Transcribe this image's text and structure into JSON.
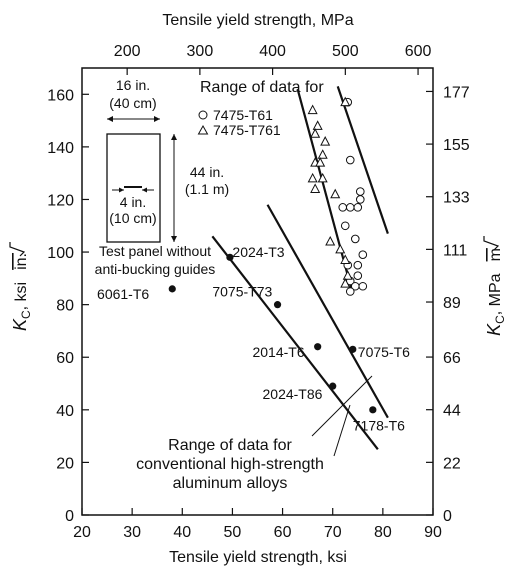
{
  "chart_data": {
    "type": "scatter",
    "x_axis": {
      "label": "Tensile yield strength, ksi",
      "range": [
        20,
        90
      ],
      "ticks": [
        20,
        30,
        40,
        50,
        60,
        70,
        80,
        90
      ]
    },
    "x2_axis": {
      "label": "Tensile yield strength, MPa",
      "ticks": [
        200,
        300,
        400,
        500,
        600
      ]
    },
    "y_axis": {
      "label_main": "K",
      "label_sub": "C",
      "label_rest": ", ksi",
      "label_root": "in.",
      "range": [
        0,
        170
      ],
      "ticks": [
        0,
        20,
        40,
        60,
        80,
        100,
        120,
        140,
        160
      ]
    },
    "y2_axis": {
      "label_main": "K",
      "label_sub": "C",
      "label_rest": ", MPa",
      "label_root": "m",
      "ticks": [
        0,
        22,
        44,
        66,
        89,
        111,
        133,
        155,
        177
      ]
    },
    "grid": false,
    "legend": {
      "placement": "top-right",
      "title": "Range of data for",
      "items": [
        {
          "marker": "circle-open",
          "label": "7475-T61"
        },
        {
          "marker": "triangle-open",
          "label": "7475-T761"
        }
      ]
    },
    "series": [
      {
        "name": "7475-T61",
        "marker": "circle-open",
        "points": [
          {
            "x": 73.5,
            "y": 135
          },
          {
            "x": 75.5,
            "y": 123
          },
          {
            "x": 75.5,
            "y": 120
          },
          {
            "x": 72,
            "y": 117
          },
          {
            "x": 73.5,
            "y": 117
          },
          {
            "x": 75,
            "y": 117
          },
          {
            "x": 72.5,
            "y": 110
          },
          {
            "x": 74.5,
            "y": 105
          },
          {
            "x": 76,
            "y": 99
          },
          {
            "x": 73,
            "y": 95
          },
          {
            "x": 75,
            "y": 95
          },
          {
            "x": 75,
            "y": 91
          },
          {
            "x": 73.5,
            "y": 89
          },
          {
            "x": 74.5,
            "y": 87
          },
          {
            "x": 76,
            "y": 87
          },
          {
            "x": 73.5,
            "y": 85
          },
          {
            "x": 73,
            "y": 157
          }
        ]
      },
      {
        "name": "7475-T761",
        "marker": "triangle-open",
        "points": [
          {
            "x": 72.5,
            "y": 157
          },
          {
            "x": 66,
            "y": 154
          },
          {
            "x": 67,
            "y": 148
          },
          {
            "x": 66.5,
            "y": 145
          },
          {
            "x": 68.5,
            "y": 142
          },
          {
            "x": 68,
            "y": 137
          },
          {
            "x": 66.5,
            "y": 134
          },
          {
            "x": 67.5,
            "y": 134
          },
          {
            "x": 68,
            "y": 128
          },
          {
            "x": 66,
            "y": 128
          },
          {
            "x": 66.5,
            "y": 124
          },
          {
            "x": 70.5,
            "y": 122
          },
          {
            "x": 69.5,
            "y": 104
          },
          {
            "x": 71.5,
            "y": 101
          },
          {
            "x": 72.5,
            "y": 97
          },
          {
            "x": 73,
            "y": 91
          },
          {
            "x": 72.5,
            "y": 88
          }
        ]
      },
      {
        "name": "conventional",
        "marker": "filled-circle",
        "points": [
          {
            "x": 38,
            "y": 86,
            "label": "6061-T6",
            "lx": 23,
            "ly": 84
          },
          {
            "x": 49.5,
            "y": 98,
            "label": "2024-T3",
            "lx": 50,
            "ly": 100
          },
          {
            "x": 59,
            "y": 80,
            "label": "7075-T73",
            "lx": 46,
            "ly": 85
          },
          {
            "x": 67,
            "y": 64,
            "label": "2014-T6",
            "lx": 54,
            "ly": 62
          },
          {
            "x": 74,
            "y": 63,
            "label": "7075-T6",
            "lx": 75,
            "ly": 62
          },
          {
            "x": 70,
            "y": 49,
            "label": "2024-T86",
            "lx": 56,
            "ly": 46
          },
          {
            "x": 78,
            "y": 40,
            "label": "7178-T6",
            "lx": 74,
            "ly": 34
          }
        ]
      }
    ],
    "lines": [
      {
        "name": "7475 range upper bound",
        "x1": 71,
        "y1": 163,
        "x2": 81,
        "y2": 107
      },
      {
        "name": "7475 range lower bound",
        "x1": 63,
        "y1": 162,
        "x2": 74,
        "y2": 84
      },
      {
        "name": "conventional range upper bound",
        "x1": 57,
        "y1": 118,
        "x2": 81,
        "y2": 37
      },
      {
        "name": "conventional range lower bound",
        "x1": 46,
        "y1": 106,
        "x2": 79,
        "y2": 25
      }
    ],
    "annotations": {
      "panel_width": "16 in.",
      "panel_width_metric": "(40 cm)",
      "panel_height": "44 in.",
      "panel_height_metric": "(1.1 m)",
      "crack_length": "4 in.",
      "crack_length_metric": "(10 cm)",
      "panel_caption_line1": "Test panel without",
      "panel_caption_line2": "anti-bucking guides",
      "range_caption_line1": "Range of data for",
      "range_caption_line2": "conventional high-strength",
      "range_caption_line3": "aluminum alloys"
    }
  }
}
